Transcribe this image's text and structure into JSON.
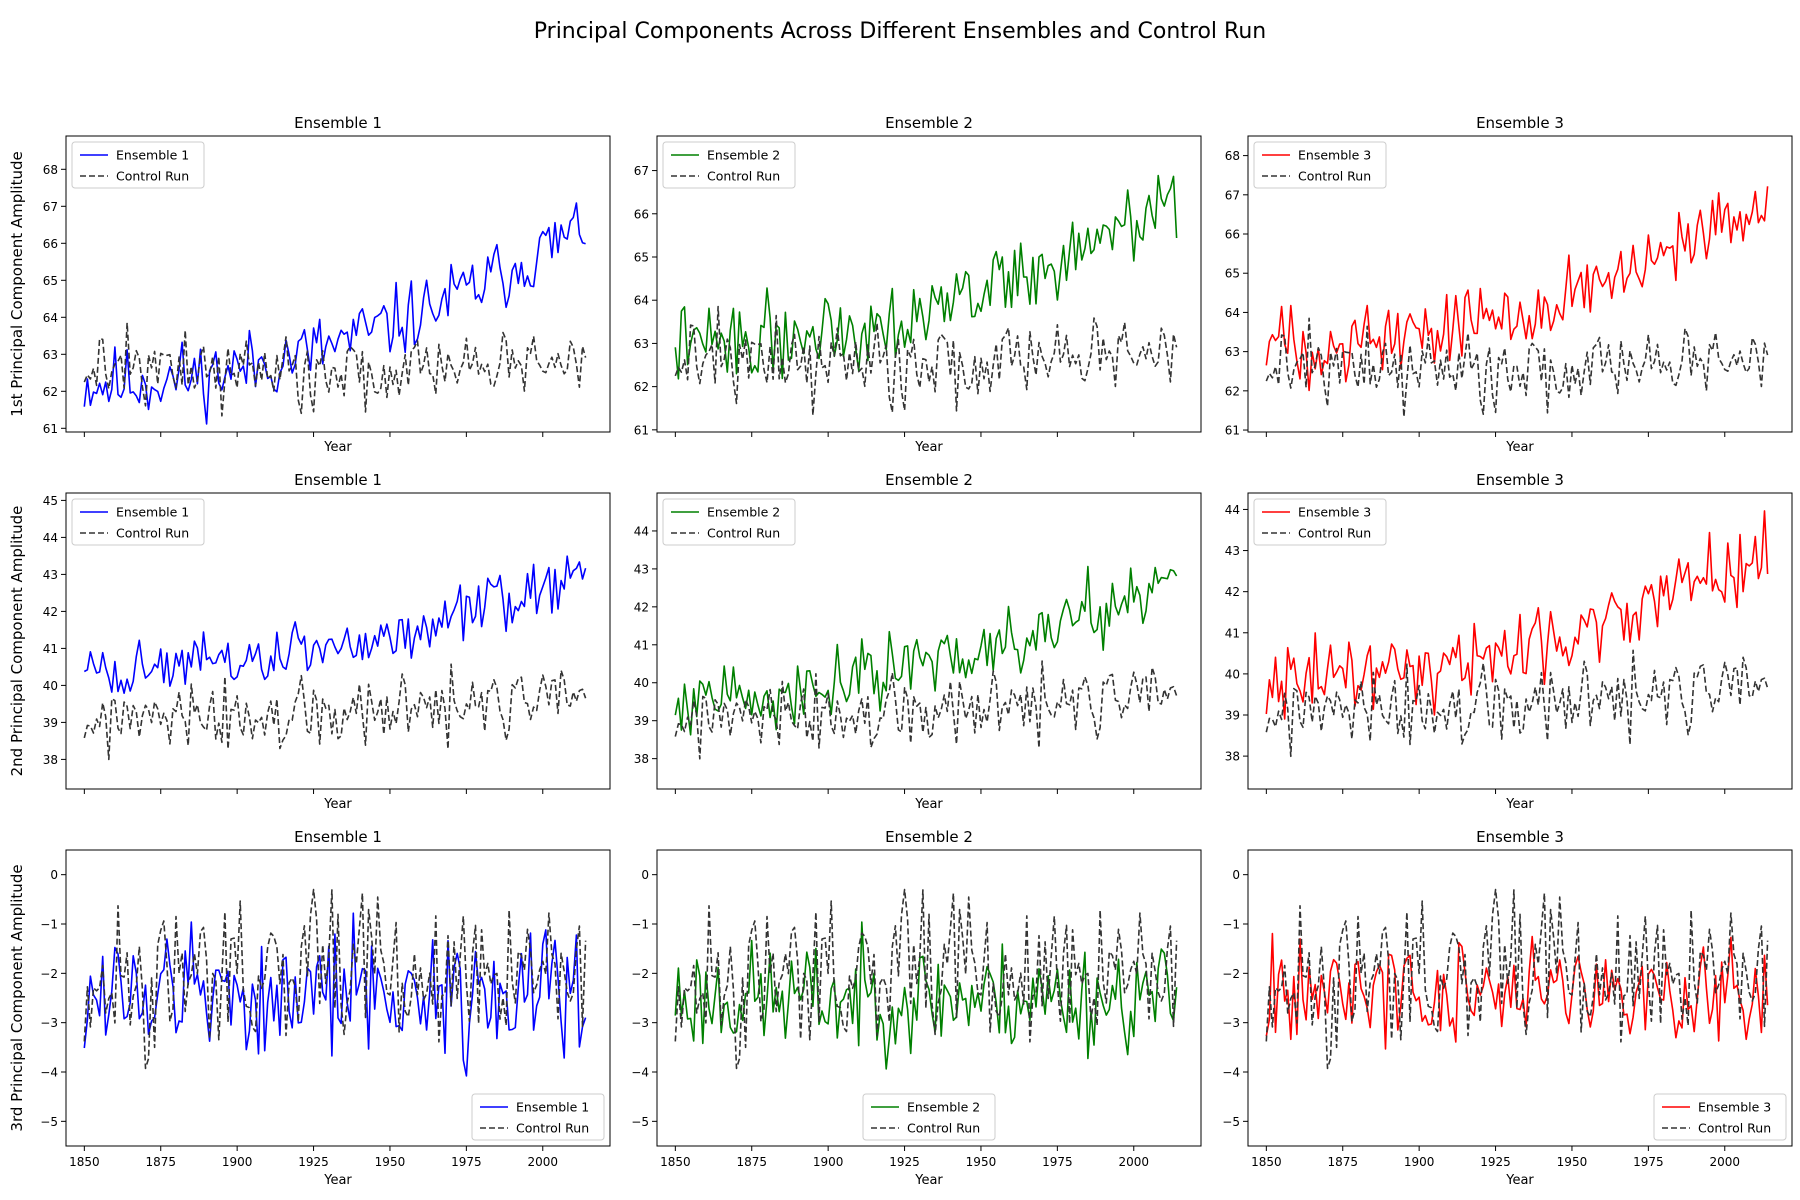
{
  "title": "Principal Components Across Different Ensembles and Control Run",
  "colors": {
    "Ensemble 1": "#0000ff",
    "Ensemble 2": "#008000",
    "Ensemble 3": "#ff0000",
    "Control Run": "#333333"
  },
  "chart_data": [
    {
      "type": "line",
      "row": 1,
      "col": 1,
      "title": "Ensemble 1",
      "xlabel": "Year",
      "ylabel": "1st Principal Component Amplitude",
      "xlim": [
        1844,
        2022
      ],
      "ylim": [
        60.9,
        68.9
      ],
      "yticks": [
        61,
        62,
        63,
        64,
        65,
        66,
        67,
        68
      ],
      "legend": "upper left",
      "series": [
        {
          "name": "Ensemble 1",
          "color": "#0000ff",
          "style": "solid",
          "start": 62.2,
          "end": 66.5,
          "amp": 0.75,
          "seed": 11
        },
        {
          "name": "Control Run",
          "color": "#333333",
          "style": "dashed",
          "start": 62.6,
          "end": 62.8,
          "amp": 0.75,
          "seed": 99
        }
      ]
    },
    {
      "type": "line",
      "row": 1,
      "col": 2,
      "title": "Ensemble 2",
      "xlabel": "Year",
      "ylabel": "",
      "xlim": [
        1844,
        2022
      ],
      "ylim": [
        60.95,
        67.8
      ],
      "yticks": [
        61,
        62,
        63,
        64,
        65,
        66,
        67
      ],
      "legend": "upper left",
      "series": [
        {
          "name": "Ensemble 2",
          "color": "#008000",
          "style": "solid",
          "start": 63.0,
          "end": 66.3,
          "amp": 0.7,
          "seed": 22
        },
        {
          "name": "Control Run",
          "color": "#333333",
          "style": "dashed",
          "start": 62.6,
          "end": 62.8,
          "amp": 0.75,
          "seed": 99
        }
      ]
    },
    {
      "type": "line",
      "row": 1,
      "col": 3,
      "title": "Ensemble 3",
      "xlabel": "Year",
      "ylabel": "",
      "xlim": [
        1844,
        2022
      ],
      "ylim": [
        60.95,
        68.5
      ],
      "yticks": [
        61,
        62,
        63,
        64,
        65,
        66,
        67,
        68
      ],
      "legend": "upper left",
      "series": [
        {
          "name": "Ensemble 3",
          "color": "#ff0000",
          "style": "solid",
          "start": 63.2,
          "end": 66.6,
          "amp": 0.75,
          "seed": 33
        },
        {
          "name": "Control Run",
          "color": "#333333",
          "style": "dashed",
          "start": 62.6,
          "end": 62.8,
          "amp": 0.75,
          "seed": 99
        }
      ]
    },
    {
      "type": "line",
      "row": 2,
      "col": 1,
      "title": "Ensemble 1",
      "xlabel": "Year",
      "ylabel": "2nd Principal Component Amplitude",
      "xlim": [
        1844,
        2022
      ],
      "ylim": [
        37.2,
        45.2
      ],
      "yticks": [
        38,
        39,
        40,
        41,
        42,
        43,
        44,
        45
      ],
      "legend": "upper left",
      "series": [
        {
          "name": "Ensemble 1",
          "color": "#0000ff",
          "style": "solid",
          "start": 40.4,
          "end": 43.0,
          "amp": 0.6,
          "seed": 44
        },
        {
          "name": "Control Run",
          "color": "#333333",
          "style": "dashed",
          "start": 39.0,
          "end": 39.7,
          "amp": 0.75,
          "seed": 77
        }
      ]
    },
    {
      "type": "line",
      "row": 2,
      "col": 2,
      "title": "Ensemble 2",
      "xlabel": "Year",
      "ylabel": "",
      "xlim": [
        1844,
        2022
      ],
      "ylim": [
        37.2,
        45.0
      ],
      "yticks": [
        38,
        39,
        40,
        41,
        42,
        43,
        44
      ],
      "legend": "upper left",
      "series": [
        {
          "name": "Ensemble 2",
          "color": "#008000",
          "style": "solid",
          "start": 39.6,
          "end": 43.0,
          "amp": 0.7,
          "seed": 55
        },
        {
          "name": "Control Run",
          "color": "#333333",
          "style": "dashed",
          "start": 39.0,
          "end": 39.7,
          "amp": 0.75,
          "seed": 77
        }
      ]
    },
    {
      "type": "line",
      "row": 2,
      "col": 3,
      "title": "Ensemble 3",
      "xlabel": "Year",
      "ylabel": "",
      "xlim": [
        1844,
        2022
      ],
      "ylim": [
        37.2,
        44.4
      ],
      "yticks": [
        38,
        39,
        40,
        41,
        42,
        43,
        44
      ],
      "legend": "upper left",
      "series": [
        {
          "name": "Ensemble 3",
          "color": "#ff0000",
          "style": "solid",
          "start": 39.9,
          "end": 43.0,
          "amp": 0.7,
          "seed": 66
        },
        {
          "name": "Control Run",
          "color": "#333333",
          "style": "dashed",
          "start": 39.0,
          "end": 39.7,
          "amp": 0.75,
          "seed": 77
        }
      ]
    },
    {
      "type": "line",
      "row": 3,
      "col": 1,
      "title": "Ensemble 1",
      "xlabel": "Year",
      "ylabel": "3rd Principal Component Amplitude",
      "xlim": [
        1844,
        2022
      ],
      "ylim": [
        -5.5,
        0.5
      ],
      "yticks": [
        0,
        -1,
        -2,
        -3,
        -4,
        -5
      ],
      "xticks": [
        1850,
        1875,
        1900,
        1925,
        1950,
        1975,
        2000
      ],
      "legend": "lower right",
      "series": [
        {
          "name": "Ensemble 1",
          "color": "#0000ff",
          "style": "solid",
          "start": -2.4,
          "end": -2.4,
          "amp": 1.0,
          "seed": 12
        },
        {
          "name": "Control Run",
          "color": "#333333",
          "style": "dashed",
          "start": -2.1,
          "end": -2.1,
          "amp": 1.1,
          "seed": 88
        }
      ]
    },
    {
      "type": "line",
      "row": 3,
      "col": 2,
      "title": "Ensemble 2",
      "xlabel": "Year",
      "ylabel": "",
      "xlim": [
        1844,
        2022
      ],
      "ylim": [
        -5.5,
        0.5
      ],
      "yticks": [
        0,
        -1,
        -2,
        -3,
        -4,
        -5
      ],
      "xticks": [
        1850,
        1875,
        1900,
        1925,
        1950,
        1975,
        2000
      ],
      "legend": "lower center",
      "series": [
        {
          "name": "Ensemble 2",
          "color": "#008000",
          "style": "solid",
          "start": -2.5,
          "end": -2.5,
          "amp": 0.85,
          "seed": 23
        },
        {
          "name": "Control Run",
          "color": "#333333",
          "style": "dashed",
          "start": -2.1,
          "end": -2.1,
          "amp": 1.1,
          "seed": 88
        }
      ]
    },
    {
      "type": "line",
      "row": 3,
      "col": 3,
      "title": "Ensemble 3",
      "xlabel": "Year",
      "ylabel": "",
      "xlim": [
        1844,
        2022
      ],
      "ylim": [
        -5.5,
        0.5
      ],
      "yticks": [
        0,
        -1,
        -2,
        -3,
        -4,
        -5
      ],
      "xticks": [
        1850,
        1875,
        1900,
        1925,
        1950,
        1975,
        2000
      ],
      "legend": "lower right",
      "series": [
        {
          "name": "Ensemble 3",
          "color": "#ff0000",
          "style": "solid",
          "start": -2.4,
          "end": -2.4,
          "amp": 0.85,
          "seed": 34
        },
        {
          "name": "Control Run",
          "color": "#333333",
          "style": "dashed",
          "start": -2.1,
          "end": -2.1,
          "amp": 1.1,
          "seed": 88
        }
      ]
    }
  ]
}
